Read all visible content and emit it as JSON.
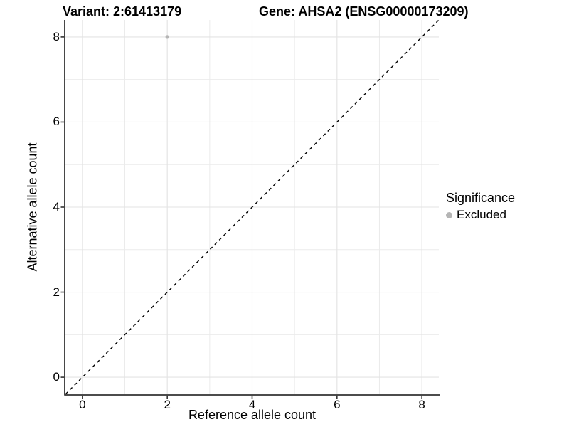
{
  "chart_data": {
    "type": "scatter",
    "title_left": "Variant: 2:61413179",
    "title_right": "Gene: AHSA2 (ENSG00000173209)",
    "xlabel": "Reference allele count",
    "ylabel": "Alternative allele count",
    "xlim": [
      -0.4,
      8.4
    ],
    "ylim": [
      -0.4,
      8.4
    ],
    "x_ticks": [
      0,
      2,
      4,
      6,
      8
    ],
    "y_ticks": [
      0,
      2,
      4,
      6,
      8
    ],
    "x_tick_labels": [
      "0",
      "2",
      "4",
      "6",
      "8"
    ],
    "y_tick_labels": [
      "0",
      "2",
      "4",
      "6",
      "8"
    ],
    "minor_grid_x": [
      1,
      3,
      5,
      7
    ],
    "minor_grid_y": [
      1,
      3,
      5,
      7
    ],
    "grid": true,
    "points": [
      {
        "x": 2,
        "y": 8,
        "series": "Excluded"
      }
    ],
    "identity_line": {
      "style": "dashed",
      "from": [
        -0.4,
        -0.4
      ],
      "to": [
        8.4,
        8.4
      ]
    },
    "legend": {
      "position": "right",
      "title": "Significance",
      "entries": [
        {
          "label": "Excluded",
          "color": "#b5b5b5"
        }
      ]
    },
    "colors": {
      "point": "#b5b5b5",
      "grid_major": "#e3e3e3",
      "grid_minor": "#ebebeb",
      "axis": "#333333",
      "identity": "#000000",
      "background": "#ffffff"
    }
  }
}
